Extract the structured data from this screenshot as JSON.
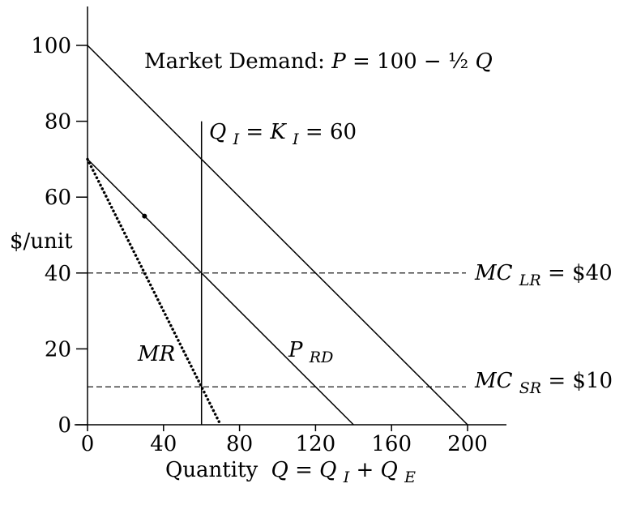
{
  "chart_data": {
    "type": "line",
    "title": "",
    "xlabel": "Quantity",
    "xlabel_eq": "Q = Q",
    "xlabel_sub1": "I",
    "xlabel_plus": " + Q",
    "xlabel_sub2": "E",
    "ylabel": "$/unit",
    "xlim": [
      0,
      200
    ],
    "ylim": [
      0,
      100
    ],
    "x_ticks": [
      0,
      40,
      80,
      120,
      160,
      200
    ],
    "y_ticks": [
      0,
      20,
      40,
      60,
      80,
      100
    ],
    "grid": false,
    "series": [
      {
        "key": "demand",
        "points": [
          [
            0,
            100
          ],
          [
            200,
            0
          ]
        ],
        "style": "solid"
      },
      {
        "key": "prd",
        "points": [
          [
            0,
            70
          ],
          [
            140,
            0
          ]
        ],
        "style": "solid"
      },
      {
        "key": "mr",
        "points": [
          [
            0,
            70
          ],
          [
            70,
            0
          ]
        ],
        "style": "dotted"
      },
      {
        "key": "capacity",
        "points": [
          [
            60,
            0
          ],
          [
            60,
            80
          ]
        ],
        "style": "solid"
      },
      {
        "key": "mclr",
        "points": [
          [
            0,
            40
          ],
          [
            200,
            40
          ]
        ],
        "style": "dashed"
      },
      {
        "key": "mcsr",
        "points": [
          [
            0,
            10
          ],
          [
            200,
            10
          ]
        ],
        "style": "dashed"
      }
    ],
    "markers": [
      {
        "x": 30,
        "y": 55
      }
    ],
    "annotations": {
      "demand_prefix": "Market Demand: ",
      "demand_p": "P",
      "demand_eq": " = 100 − ½ ",
      "demand_q": "Q",
      "capacity_q": "Q",
      "capacity_sub1": "I",
      "capacity_mid": " = K",
      "capacity_sub2": "I",
      "capacity_val": " = 60",
      "mclr_main": "MC",
      "mclr_sub": "LR",
      "mclr_val": " = $40",
      "mcsr_main": "MC",
      "mcsr_sub": "SR",
      "mcsr_val": " = $10",
      "prd_main": "P",
      "prd_sub": "RD",
      "mr": "MR"
    }
  }
}
